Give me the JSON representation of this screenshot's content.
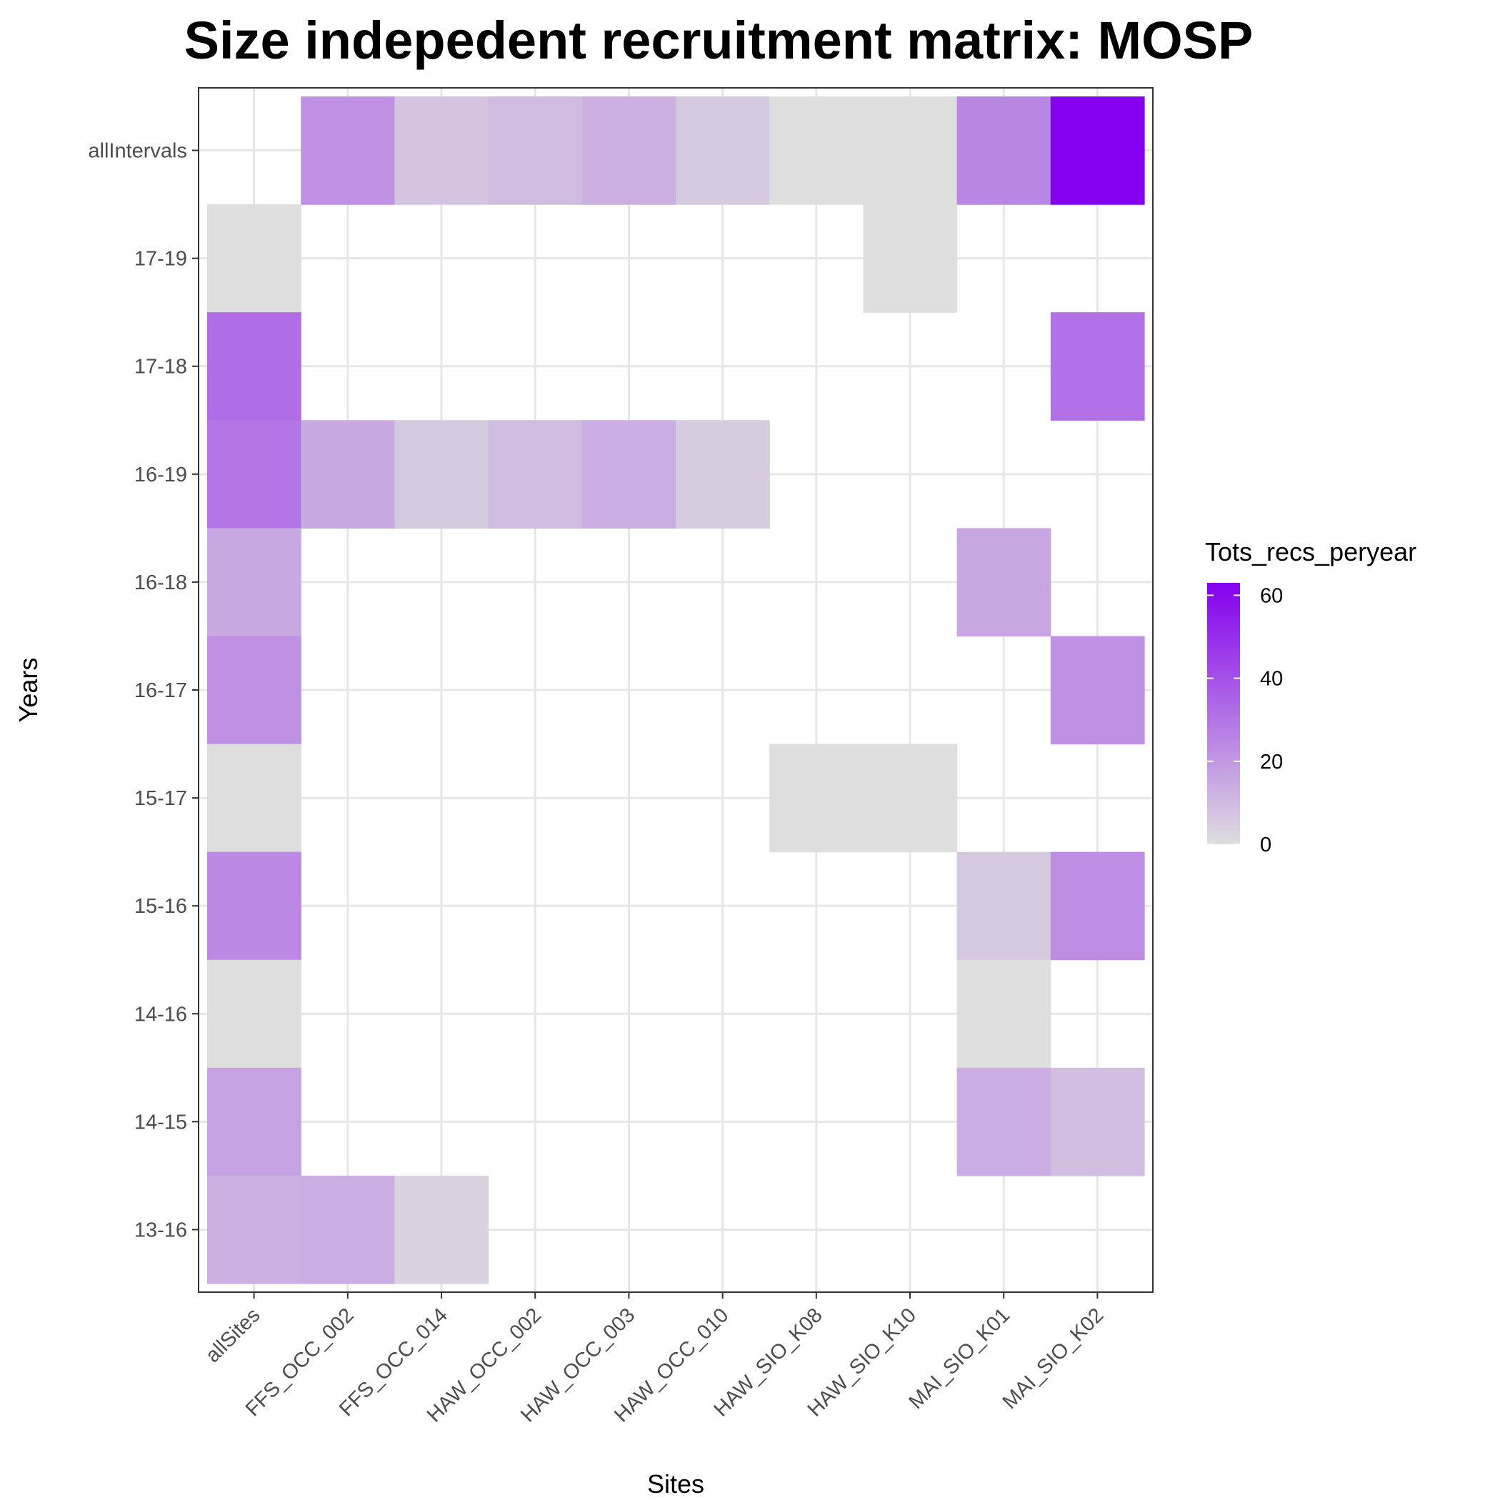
{
  "chart_data": {
    "type": "heatmap",
    "title": "Size indepedent recruitment matrix: MOSP",
    "xlabel": "Sites",
    "ylabel": "Years",
    "x_categories": [
      "allSites",
      "FFS_OCC_002",
      "FFS_OCC_014",
      "HAW_OCC_002",
      "HAW_OCC_003",
      "HAW_OCC_010",
      "HAW_SIO_K08",
      "HAW_SIO_K10",
      "MAI_SIO_K01",
      "MAI_SIO_K02"
    ],
    "y_categories": [
      "allIntervals",
      "17-19",
      "17-18",
      "16-19",
      "16-18",
      "16-17",
      "15-17",
      "15-16",
      "14-16",
      "14-15",
      "13-16"
    ],
    "cells": [
      {
        "x": "FFS_OCC_002",
        "y": "allIntervals",
        "value": 22
      },
      {
        "x": "FFS_OCC_014",
        "y": "allIntervals",
        "value": 8
      },
      {
        "x": "HAW_OCC_002",
        "y": "allIntervals",
        "value": 10
      },
      {
        "x": "HAW_OCC_003",
        "y": "allIntervals",
        "value": 13
      },
      {
        "x": "HAW_OCC_010",
        "y": "allIntervals",
        "value": 6
      },
      {
        "x": "HAW_SIO_K08",
        "y": "allIntervals",
        "value": 0
      },
      {
        "x": "HAW_SIO_K10",
        "y": "allIntervals",
        "value": 0
      },
      {
        "x": "MAI_SIO_K01",
        "y": "allIntervals",
        "value": 25
      },
      {
        "x": "MAI_SIO_K02",
        "y": "allIntervals",
        "value": 63
      },
      {
        "x": "allSites",
        "y": "17-19",
        "value": 0
      },
      {
        "x": "HAW_SIO_K10",
        "y": "17-19",
        "value": 0
      },
      {
        "x": "allSites",
        "y": "17-18",
        "value": 32
      },
      {
        "x": "MAI_SIO_K02",
        "y": "17-18",
        "value": 31
      },
      {
        "x": "allSites",
        "y": "16-19",
        "value": 30
      },
      {
        "x": "FFS_OCC_002",
        "y": "16-19",
        "value": 15
      },
      {
        "x": "FFS_OCC_014",
        "y": "16-19",
        "value": 6
      },
      {
        "x": "HAW_OCC_002",
        "y": "16-19",
        "value": 10
      },
      {
        "x": "HAW_OCC_003",
        "y": "16-19",
        "value": 14
      },
      {
        "x": "HAW_OCC_010",
        "y": "16-19",
        "value": 5
      },
      {
        "x": "allSites",
        "y": "16-18",
        "value": 15
      },
      {
        "x": "MAI_SIO_K01",
        "y": "16-18",
        "value": 16
      },
      {
        "x": "allSites",
        "y": "16-17",
        "value": 22
      },
      {
        "x": "MAI_SIO_K02",
        "y": "16-17",
        "value": 22
      },
      {
        "x": "allSites",
        "y": "15-17",
        "value": 0
      },
      {
        "x": "HAW_SIO_K08",
        "y": "15-17",
        "value": 0
      },
      {
        "x": "HAW_SIO_K10",
        "y": "15-17",
        "value": 0
      },
      {
        "x": "allSites",
        "y": "15-16",
        "value": 24
      },
      {
        "x": "MAI_SIO_K01",
        "y": "15-16",
        "value": 6
      },
      {
        "x": "MAI_SIO_K02",
        "y": "15-16",
        "value": 23
      },
      {
        "x": "allSites",
        "y": "14-16",
        "value": 0
      },
      {
        "x": "MAI_SIO_K01",
        "y": "14-16",
        "value": 0
      },
      {
        "x": "allSites",
        "y": "14-15",
        "value": 17
      },
      {
        "x": "MAI_SIO_K01",
        "y": "14-15",
        "value": 14
      },
      {
        "x": "MAI_SIO_K02",
        "y": "14-15",
        "value": 9
      },
      {
        "x": "allSites",
        "y": "13-16",
        "value": 13
      },
      {
        "x": "FFS_OCC_002",
        "y": "13-16",
        "value": 14
      },
      {
        "x": "FFS_OCC_014",
        "y": "13-16",
        "value": 3
      }
    ],
    "legend": {
      "title": "Tots_recs_peryear",
      "min": 0,
      "max": 63,
      "ticks": [
        0,
        20,
        40,
        60
      ],
      "low_color": "#dedede",
      "high_color": "#8400ee",
      "placement": "right"
    },
    "grid": true
  }
}
